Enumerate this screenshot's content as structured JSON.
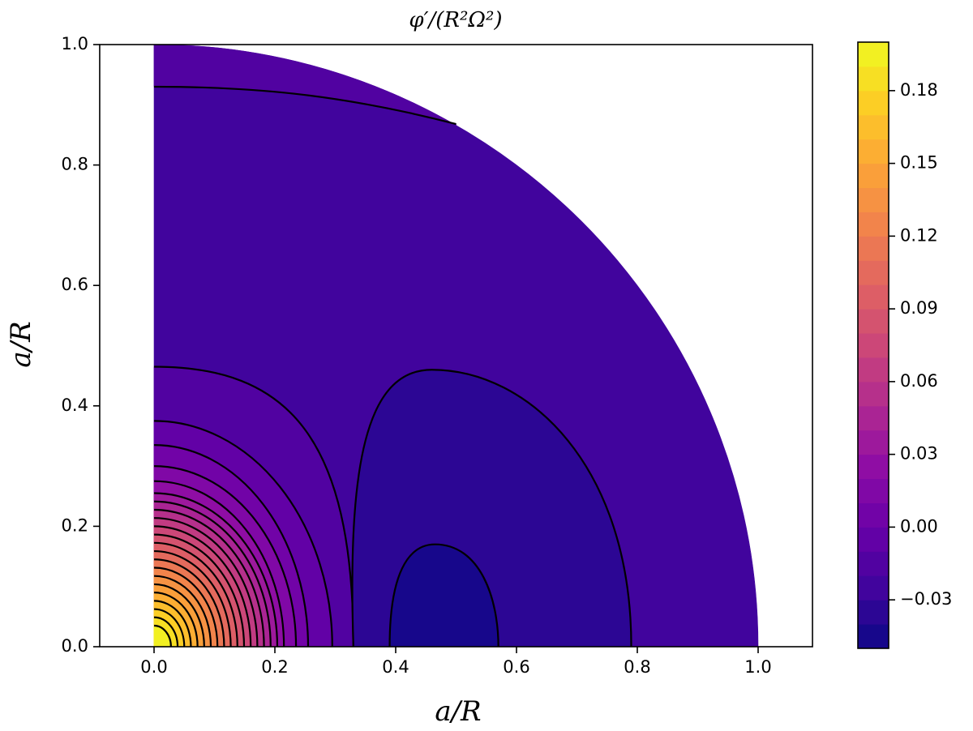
{
  "chart_data": {
    "type": "contour",
    "title": "φ′/(R²Ω²)",
    "xlabel": "a/R",
    "ylabel": "a/R",
    "xlim": [
      -0.09,
      1.09
    ],
    "ylim": [
      0,
      1
    ],
    "xticks": [
      {
        "value": 0,
        "label": "0.0"
      },
      0.2,
      0.4,
      0.6,
      0.8,
      {
        "value": 1,
        "label": "1.0"
      }
    ],
    "yticks": [
      {
        "value": 0,
        "label": "0.0"
      },
      0.2,
      0.4,
      0.6,
      0.8,
      {
        "value": 1,
        "label": "1.0"
      }
    ],
    "colormap": "plasma",
    "clim": [
      -0.05,
      0.2
    ],
    "levels": [
      -0.05,
      -0.04,
      -0.03,
      -0.02,
      -0.01,
      0,
      0.01,
      0.02,
      0.03,
      0.04,
      0.05,
      0.06,
      0.07,
      0.08,
      0.09,
      0.1,
      0.11,
      0.12,
      0.13,
      0.14,
      0.15,
      0.16,
      0.17,
      0.18,
      0.19,
      0.2
    ],
    "cticks": [
      {
        "value": -0.03,
        "label": "−0.03"
      },
      {
        "value": 0,
        "label": "0.00"
      },
      0.03,
      0.06,
      0.09,
      0.12,
      0.15,
      0.18
    ],
    "line_color": "#000000"
  }
}
